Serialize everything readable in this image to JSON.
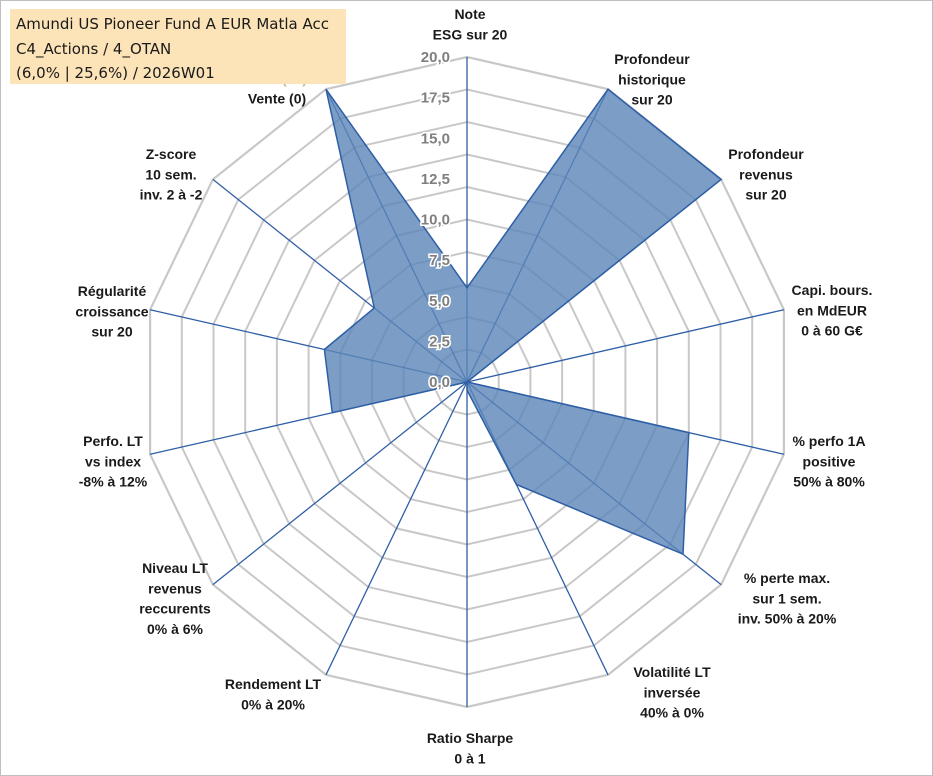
{
  "title_box": {
    "line1": "Amundi US Pioneer Fund A EUR Matla Acc",
    "line2": "C4_Actions / 4_OTAN",
    "line3": "(6,0% | 25,6%) / 2026W01"
  },
  "chart_data": {
    "type": "radar",
    "title": "Amundi US Pioneer Fund A EUR Matla Acc",
    "rmin": 0,
    "rmax": 20,
    "ticks": [
      "0,0",
      "2,5",
      "5,0",
      "7,5",
      "10,0",
      "12,5",
      "15,0",
      "17,5",
      "20,0"
    ],
    "grid_rings": 10,
    "axes": [
      {
        "label": [
          "Note",
          "ESG sur 20"
        ],
        "value": 5.8
      },
      {
        "label": [
          "Profondeur",
          "historique",
          "sur 20"
        ],
        "value": 20
      },
      {
        "label": [
          "Profondeur",
          "revenus",
          "sur 20"
        ],
        "value": 20
      },
      {
        "label": [
          "Capi. bours.",
          "en MdEUR",
          "0 à 60 G€"
        ],
        "value": 0
      },
      {
        "label": [
          "% perfo 1A",
          "positive",
          "50% à 80%"
        ],
        "value": 14
      },
      {
        "label": [
          "% perte max.",
          "sur 1 sem.",
          "inv. 50% à 20%"
        ],
        "value": 17
      },
      {
        "label": [
          "Volatilité LT",
          "inversée",
          "40% à 0%"
        ],
        "value": 7
      },
      {
        "label": [
          "Ratio Sharpe",
          "0 à 1"
        ],
        "value": 0.5
      },
      {
        "label": [
          "Rendement LT",
          "0% à 20%"
        ],
        "value": 0
      },
      {
        "label": [
          "Niveau LT",
          "revenus",
          "reccurents",
          "0% à 6%"
        ],
        "value": 0
      },
      {
        "label": [
          "Perfo. LT",
          "vs index",
          "-8% à 12%"
        ],
        "value": 8.5
      },
      {
        "label": [
          "Régularité",
          "croissance",
          "sur 20"
        ],
        "value": 9
      },
      {
        "label": [
          "Z-score",
          "10 sem.",
          "inv. 2 à -2"
        ],
        "value": 7.3
      },
      {
        "label": [
          "Momentum",
          "Achat (20) /",
          "Vente (0)"
        ],
        "value": 20
      }
    ],
    "series": [
      {
        "name": "Fonds",
        "color": "#5b86b8"
      }
    ],
    "colors": {
      "grid": "#c8c8c8",
      "spoke": "#2e5fa6",
      "fill": "#5b86b8",
      "fill_stroke": "#2e5fa6",
      "momentum_label": "#c9b98a"
    }
  }
}
